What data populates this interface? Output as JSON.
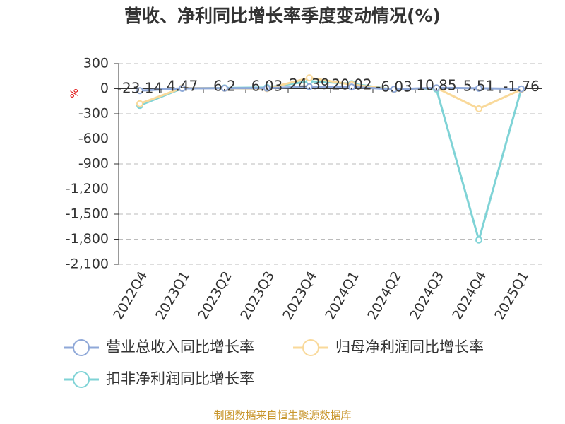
{
  "chart_data": {
    "type": "line",
    "title": "营收、净利同比增长率季度变动情况(%)",
    "y_axis_label": "%",
    "categories": [
      "2022Q4",
      "2023Q1",
      "2023Q2",
      "2023Q3",
      "2023Q4",
      "2024Q1",
      "2024Q2",
      "2024Q3",
      "2024Q4",
      "2025Q1"
    ],
    "series": [
      {
        "name": "营业总收入同比增长率",
        "color": "#8fa8d8",
        "values": [
          -23.14,
          4.47,
          6.2,
          6.03,
          24.39,
          20.02,
          -6.03,
          10.85,
          5.51,
          -1.76
        ]
      },
      {
        "name": "归母净利润同比增长率",
        "color": "#f9d99a",
        "values": [
          -180,
          10,
          5,
          0,
          130,
          50,
          -10,
          10,
          -240,
          -10
        ]
      },
      {
        "name": "扣非净利润同比增长率",
        "color": "#7fd3d6",
        "values": [
          -200,
          5,
          10,
          15,
          90,
          60,
          -10,
          -5,
          -1810,
          -5
        ]
      }
    ],
    "ylim": [
      -2100,
      300
    ],
    "yticks": [
      {
        "value": -2100,
        "label": "-2,100"
      },
      {
        "value": -1800,
        "label": "-1,800"
      },
      {
        "value": -1500,
        "label": "-1,500"
      },
      {
        "value": -1200,
        "label": "-1,200"
      },
      -900,
      -600,
      -300,
      0,
      300
    ],
    "grid": true,
    "source": "制图数据来自恒生聚源数据库"
  }
}
